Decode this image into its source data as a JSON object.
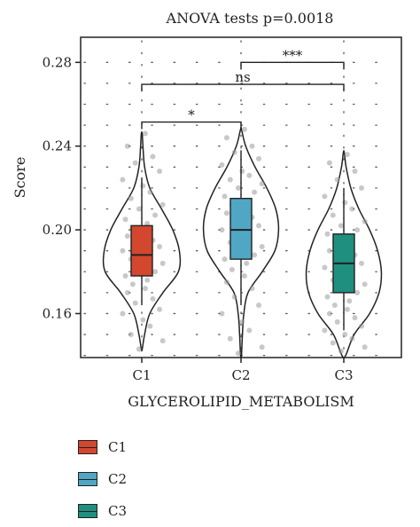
{
  "chart_data": {
    "type": "violin",
    "title": "ANOVA tests p=0.0018",
    "xlabel": "GLYCEROLIPID_METABOLISM",
    "ylabel": "Score",
    "ylim": [
      0.139,
      0.292
    ],
    "yticks": [
      0.16,
      0.2,
      0.24,
      0.28
    ],
    "ytick_labels": [
      "0.16",
      "0.20",
      "0.24",
      "0.28"
    ],
    "categories": [
      "C1",
      "C2",
      "C3"
    ],
    "colors": [
      "#d2472e",
      "#4fa7c4",
      "#1f8f7f"
    ],
    "grid": "dotted",
    "legend_position": "bottom-left",
    "series": [
      {
        "name": "C1",
        "box": {
          "q1": 0.178,
          "median": 0.188,
          "q3": 0.202,
          "whisker_low": 0.164,
          "whisker_high": 0.225
        },
        "violin": {
          "y": [
            0.143,
            0.15,
            0.16,
            0.17,
            0.18,
            0.19,
            0.2,
            0.21,
            0.22,
            0.23,
            0.24,
            0.246
          ],
          "hw": [
            0.01,
            0.06,
            0.17,
            0.45,
            0.78,
            0.8,
            0.66,
            0.42,
            0.17,
            0.06,
            0.025,
            0.01
          ]
        },
        "points": [
          0.246,
          0.24,
          0.235,
          0.232,
          0.228,
          0.224,
          0.221,
          0.218,
          0.215,
          0.212,
          0.21,
          0.207,
          0.205,
          0.203,
          0.201,
          0.199,
          0.197,
          0.195,
          0.194,
          0.192,
          0.19,
          0.189,
          0.188,
          0.186,
          0.184,
          0.182,
          0.18,
          0.178,
          0.176,
          0.174,
          0.172,
          0.17,
          0.167,
          0.165,
          0.162,
          0.16,
          0.157,
          0.154,
          0.15,
          0.147,
          0.143
        ]
      },
      {
        "name": "C2",
        "box": {
          "q1": 0.186,
          "median": 0.2,
          "q3": 0.215,
          "whisker_low": 0.164,
          "whisker_high": 0.238
        },
        "violin": {
          "y": [
            0.14,
            0.15,
            0.16,
            0.17,
            0.18,
            0.19,
            0.2,
            0.21,
            0.22,
            0.23,
            0.24,
            0.248
          ],
          "hw": [
            0.01,
            0.03,
            0.06,
            0.15,
            0.45,
            0.72,
            0.8,
            0.74,
            0.55,
            0.3,
            0.1,
            0.01
          ]
        },
        "points": [
          0.248,
          0.244,
          0.24,
          0.237,
          0.234,
          0.231,
          0.228,
          0.226,
          0.224,
          0.222,
          0.22,
          0.218,
          0.216,
          0.214,
          0.212,
          0.21,
          0.208,
          0.206,
          0.204,
          0.202,
          0.2,
          0.198,
          0.196,
          0.194,
          0.192,
          0.19,
          0.188,
          0.186,
          0.184,
          0.181,
          0.178,
          0.175,
          0.172,
          0.168,
          0.164,
          0.16,
          0.156,
          0.152,
          0.148,
          0.144,
          0.141
        ]
      },
      {
        "name": "C3",
        "box": {
          "q1": 0.17,
          "median": 0.184,
          "q3": 0.198,
          "whisker_low": 0.152,
          "whisker_high": 0.22
        },
        "violin": {
          "y": [
            0.14,
            0.15,
            0.16,
            0.17,
            0.18,
            0.19,
            0.2,
            0.21,
            0.22,
            0.23,
            0.237
          ],
          "hw": [
            0.04,
            0.22,
            0.55,
            0.75,
            0.8,
            0.72,
            0.55,
            0.32,
            0.15,
            0.05,
            0.01
          ]
        },
        "points": [
          0.236,
          0.232,
          0.228,
          0.224,
          0.22,
          0.216,
          0.213,
          0.21,
          0.207,
          0.204,
          0.202,
          0.2,
          0.198,
          0.196,
          0.194,
          0.192,
          0.19,
          0.188,
          0.186,
          0.184,
          0.182,
          0.18,
          0.178,
          0.176,
          0.174,
          0.172,
          0.17,
          0.168,
          0.166,
          0.164,
          0.162,
          0.16,
          0.158,
          0.156,
          0.154,
          0.152,
          0.15,
          0.148,
          0.146,
          0.144,
          0.142
        ]
      }
    ],
    "comparisons": [
      {
        "from": "C1",
        "to": "C2",
        "y": 0.2515,
        "label": "*"
      },
      {
        "from": "C1",
        "to": "C3",
        "y": 0.2695,
        "label": "ns"
      },
      {
        "from": "C2",
        "to": "C3",
        "y": 0.28,
        "label": "***"
      }
    ]
  }
}
